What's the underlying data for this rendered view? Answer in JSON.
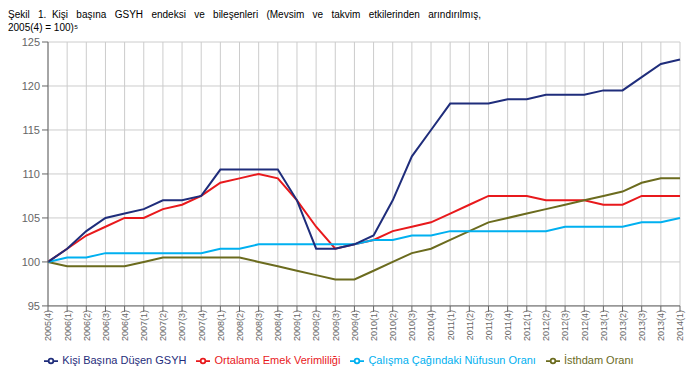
{
  "chart_data": {
    "type": "line",
    "title": "Şekil   1.  Kişi   başına   GSYH   endeksi   ve   bileşenleri   (Mevsim   ve   takvim   etkilerinden   arındırılmış,",
    "subtitle": "2005(4) = 100)⁵",
    "categories": [
      "2005(4)",
      "2006(1)",
      "2006(2)",
      "2006(3)",
      "2006(4)",
      "2007(1)",
      "2007(2)",
      "2007(3)",
      "2007(4)",
      "2008(1)",
      "2008(2)",
      "2008(3)",
      "2008(4)",
      "2009(1)",
      "2009(2)",
      "2009(3)",
      "2009(4)",
      "2010(1)",
      "2010(2)",
      "2010(3)",
      "2010(4)",
      "2011(1)",
      "2011(2)",
      "2011(3)",
      "2011(4)",
      "2012(1)",
      "2012(2)",
      "2012(3)",
      "2012(4)",
      "2013(1)",
      "2013(2)",
      "2013(3)",
      "2013(4)",
      "2014(1)"
    ],
    "series": [
      {
        "name": "Ortalama Emek Verimliliği",
        "color": "#e8191c",
        "values": [
          100.0,
          101.5,
          103.0,
          104.0,
          105.0,
          105.0,
          106.0,
          106.5,
          107.5,
          109.0,
          109.5,
          110.0,
          109.5,
          107.0,
          104.0,
          101.5,
          102.0,
          102.5,
          103.5,
          104.0,
          104.5,
          105.5,
          106.5,
          107.5,
          107.5,
          107.5,
          107.0,
          107.0,
          107.0,
          106.5,
          106.5,
          107.5,
          107.5,
          107.5
        ]
      },
      {
        "name": "İsthdam Oranı",
        "color": "#6b6b1e",
        "values": [
          100.0,
          99.5,
          99.5,
          99.5,
          99.5,
          100.0,
          100.5,
          100.5,
          100.5,
          100.5,
          100.5,
          100.0,
          99.5,
          99.0,
          98.5,
          98.0,
          98.0,
          99.0,
          100.0,
          101.0,
          101.5,
          102.5,
          103.5,
          104.5,
          105.0,
          105.5,
          106.0,
          106.5,
          107.0,
          107.5,
          108.0,
          109.0,
          109.5,
          109.5
        ]
      },
      {
        "name": "Çalışma Çağındaki Nüfusun Oranı",
        "color": "#00b0f0",
        "values": [
          100.0,
          100.5,
          100.5,
          101.0,
          101.0,
          101.0,
          101.0,
          101.0,
          101.0,
          101.5,
          101.5,
          102.0,
          102.0,
          102.0,
          102.0,
          102.0,
          102.0,
          102.5,
          102.5,
          103.0,
          103.0,
          103.5,
          103.5,
          103.5,
          103.5,
          103.5,
          103.5,
          104.0,
          104.0,
          104.0,
          104.0,
          104.5,
          104.5,
          105.0
        ]
      },
      {
        "name": "Kişi Başına Düşen GSYH",
        "color": "#1f2d7b",
        "values": [
          100.0,
          101.5,
          103.5,
          105.0,
          105.5,
          106.0,
          107.0,
          107.0,
          107.5,
          110.5,
          110.5,
          110.5,
          110.5,
          107.0,
          101.5,
          101.5,
          102.0,
          103.0,
          107.0,
          112.0,
          115.0,
          118.0,
          118.0,
          118.0,
          118.5,
          118.5,
          119.0,
          119.0,
          119.0,
          119.5,
          119.5,
          121.0,
          122.5,
          123.0
        ]
      }
    ],
    "ylim": [
      95,
      125
    ],
    "yticks": [
      95,
      100,
      105,
      110,
      115,
      120,
      125
    ],
    "grid": true
  }
}
